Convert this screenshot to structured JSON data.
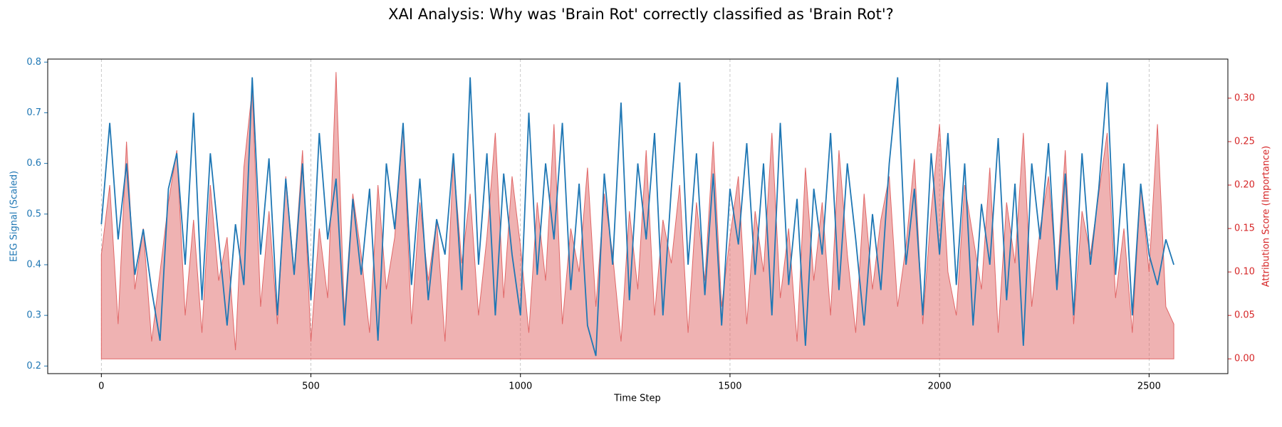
{
  "chart_data": {
    "type": "line",
    "title": "XAI Analysis: Why was 'Brain Rot' correctly classified as 'Brain Rot'?",
    "x_label": "Time Step",
    "y_label": "EEG Signal (Scaled)",
    "y2_label": "Attribution Score (Importance)",
    "x": [
      0,
      20,
      40,
      60,
      80,
      100,
      120,
      140,
      160,
      180,
      200,
      220,
      240,
      260,
      280,
      300,
      320,
      340,
      360,
      380,
      400,
      420,
      440,
      460,
      480,
      500,
      520,
      540,
      560,
      580,
      600,
      620,
      640,
      660,
      680,
      700,
      720,
      740,
      760,
      780,
      800,
      820,
      840,
      860,
      880,
      900,
      920,
      940,
      960,
      980,
      1000,
      1020,
      1040,
      1060,
      1080,
      1100,
      1120,
      1140,
      1160,
      1180,
      1200,
      1220,
      1240,
      1260,
      1280,
      1300,
      1320,
      1340,
      1360,
      1380,
      1400,
      1420,
      1440,
      1460,
      1480,
      1500,
      1520,
      1540,
      1560,
      1580,
      1600,
      1620,
      1640,
      1660,
      1680,
      1700,
      1720,
      1740,
      1760,
      1780,
      1800,
      1820,
      1840,
      1860,
      1880,
      1900,
      1920,
      1940,
      1960,
      1980,
      2000,
      2020,
      2040,
      2060,
      2080,
      2100,
      2120,
      2140,
      2160,
      2180,
      2200,
      2220,
      2240,
      2260,
      2280,
      2300,
      2320,
      2340,
      2360,
      2380,
      2400,
      2420,
      2440,
      2460,
      2480,
      2500,
      2520,
      2540,
      2559
    ],
    "series": [
      {
        "color": "#1f77b4",
        "values": [
          0.48,
          0.68,
          0.45,
          0.6,
          0.38,
          0.47,
          0.35,
          0.25,
          0.55,
          0.62,
          0.4,
          0.7,
          0.33,
          0.62,
          0.45,
          0.28,
          0.48,
          0.36,
          0.77,
          0.42,
          0.61,
          0.3,
          0.57,
          0.38,
          0.6,
          0.33,
          0.66,
          0.45,
          0.57,
          0.28,
          0.53,
          0.38,
          0.55,
          0.25,
          0.6,
          0.47,
          0.68,
          0.36,
          0.57,
          0.33,
          0.49,
          0.42,
          0.62,
          0.35,
          0.77,
          0.4,
          0.62,
          0.3,
          0.58,
          0.42,
          0.3,
          0.7,
          0.38,
          0.6,
          0.45,
          0.68,
          0.35,
          0.56,
          0.28,
          0.22,
          0.58,
          0.4,
          0.72,
          0.33,
          0.6,
          0.45,
          0.66,
          0.3,
          0.55,
          0.76,
          0.4,
          0.62,
          0.34,
          0.58,
          0.28,
          0.55,
          0.44,
          0.64,
          0.38,
          0.6,
          0.3,
          0.68,
          0.36,
          0.53,
          0.24,
          0.55,
          0.42,
          0.66,
          0.35,
          0.6,
          0.45,
          0.28,
          0.5,
          0.35,
          0.6,
          0.77,
          0.4,
          0.55,
          0.3,
          0.62,
          0.42,
          0.66,
          0.36,
          0.6,
          0.28,
          0.52,
          0.4,
          0.65,
          0.33,
          0.56,
          0.24,
          0.6,
          0.45,
          0.64,
          0.35,
          0.58,
          0.3,
          0.62,
          0.4,
          0.55,
          0.76,
          0.38,
          0.6,
          0.3,
          0.56,
          0.42,
          0.36,
          0.45,
          0.4
        ]
      },
      {
        "color": "#e06666",
        "axis": "y2",
        "style": "area",
        "values": [
          0.12,
          0.2,
          0.04,
          0.25,
          0.08,
          0.15,
          0.02,
          0.1,
          0.18,
          0.24,
          0.05,
          0.16,
          0.03,
          0.2,
          0.09,
          0.14,
          0.01,
          0.22,
          0.31,
          0.06,
          0.17,
          0.04,
          0.21,
          0.1,
          0.24,
          0.02,
          0.15,
          0.07,
          0.33,
          0.05,
          0.19,
          0.12,
          0.03,
          0.2,
          0.08,
          0.14,
          0.27,
          0.04,
          0.18,
          0.09,
          0.16,
          0.02,
          0.23,
          0.11,
          0.19,
          0.05,
          0.14,
          0.26,
          0.07,
          0.21,
          0.13,
          0.03,
          0.18,
          0.09,
          0.27,
          0.04,
          0.15,
          0.1,
          0.22,
          0.06,
          0.19,
          0.12,
          0.02,
          0.17,
          0.08,
          0.24,
          0.05,
          0.16,
          0.11,
          0.2,
          0.03,
          0.18,
          0.09,
          0.25,
          0.06,
          0.14,
          0.21,
          0.04,
          0.17,
          0.1,
          0.26,
          0.07,
          0.15,
          0.02,
          0.22,
          0.09,
          0.18,
          0.05,
          0.24,
          0.12,
          0.03,
          0.19,
          0.08,
          0.16,
          0.21,
          0.06,
          0.13,
          0.23,
          0.04,
          0.17,
          0.27,
          0.1,
          0.05,
          0.2,
          0.14,
          0.08,
          0.22,
          0.03,
          0.18,
          0.11,
          0.26,
          0.06,
          0.15,
          0.21,
          0.09,
          0.24,
          0.04,
          0.17,
          0.12,
          0.19,
          0.26,
          0.07,
          0.15,
          0.03,
          0.2,
          0.1,
          0.27,
          0.06,
          0.04
        ]
      }
    ],
    "xlim": [
      -128,
      2688
    ],
    "xticks": [
      0,
      500,
      1000,
      1500,
      2000,
      2500
    ],
    "ylim": [
      0.185,
      0.806
    ],
    "yticks": [
      0.2,
      0.3,
      0.4,
      0.5,
      0.6,
      0.7,
      0.8
    ],
    "y2lim": [
      -0.017,
      0.345
    ],
    "y2ticks": [
      {
        "value": 0,
        "label": "0.00"
      },
      {
        "value": 0.05,
        "label": "0.05"
      },
      {
        "value": 0.1,
        "label": "0.10"
      },
      {
        "value": 0.15,
        "label": "0.15"
      },
      {
        "value": 0.2,
        "label": "0.20"
      },
      {
        "value": 0.25,
        "label": "0.25"
      },
      {
        "value": 0.3,
        "label": "0.30"
      }
    ],
    "grid": "x"
  }
}
